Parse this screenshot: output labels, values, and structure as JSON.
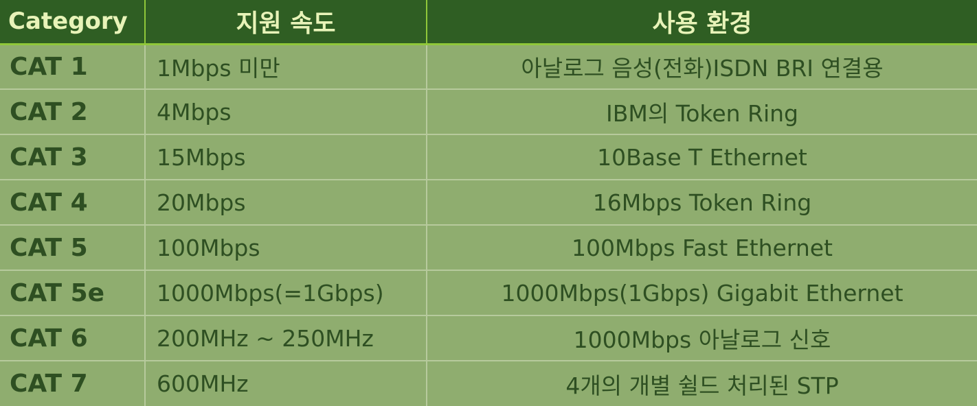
{
  "headers": {
    "category": "Category",
    "speed": "지원 속도",
    "environment": "사용 환경"
  },
  "rows": [
    {
      "category": "CAT 1",
      "speed": "1Mbps 미만",
      "environment": "아날로그 음성(전화)ISDN BRI 연결용"
    },
    {
      "category": "CAT 2",
      "speed": "4Mbps",
      "environment": "IBM의 Token Ring"
    },
    {
      "category": "CAT 3",
      "speed": "15Mbps",
      "environment": "10Base T Ethernet"
    },
    {
      "category": "CAT 4",
      "speed": "20Mbps",
      "environment": "16Mbps Token Ring"
    },
    {
      "category": "CAT 5",
      "speed": "100Mbps",
      "environment": "100Mbps Fast Ethernet"
    },
    {
      "category": "CAT 5e",
      "speed": "1000Mbps(=1Gbps)",
      "environment": "1000Mbps(1Gbps) Gigabit Ethernet"
    },
    {
      "category": "CAT 6",
      "speed": "200MHz ~ 250MHz",
      "environment": "1000Mbps 아날로그 신호"
    },
    {
      "category": "CAT 7",
      "speed": "600MHz",
      "environment": "4개의 개별 쉴드 처리된 STP"
    }
  ],
  "colors": {
    "header_bg": "#2f5e23",
    "header_text": "#e8f3b8",
    "body_bg": "#8fad6f",
    "body_text": "#2e4f22",
    "header_rule": "#90c83a"
  }
}
